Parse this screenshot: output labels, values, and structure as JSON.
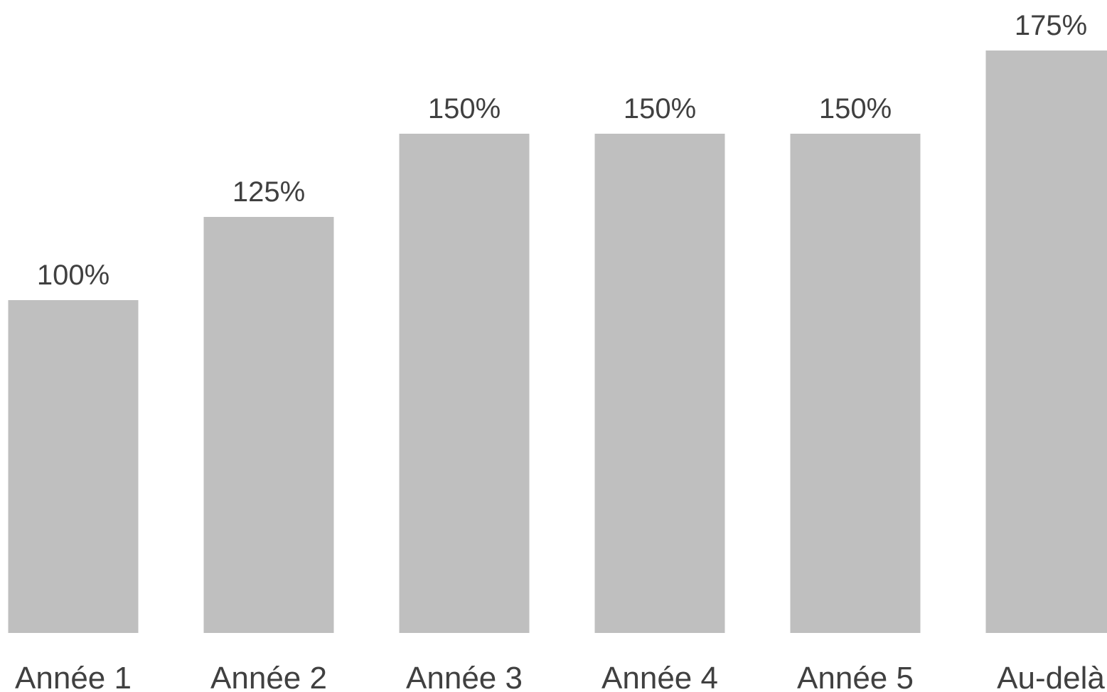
{
  "chart_data": {
    "type": "bar",
    "categories": [
      "Année 1",
      "Année 2",
      "Année 3",
      "Année 4",
      "Année 5",
      "Au-delà"
    ],
    "values": [
      100,
      125,
      150,
      150,
      150,
      175
    ],
    "value_labels": [
      "100%",
      "125%",
      "150%",
      "150%",
      "150%",
      "175%"
    ],
    "unit": "%",
    "ylim": [
      0,
      175
    ],
    "grid": false,
    "legend": "none",
    "bar_color": "#bfbfbf",
    "label_color": "#404040",
    "title": "",
    "xlabel": "",
    "ylabel": ""
  }
}
